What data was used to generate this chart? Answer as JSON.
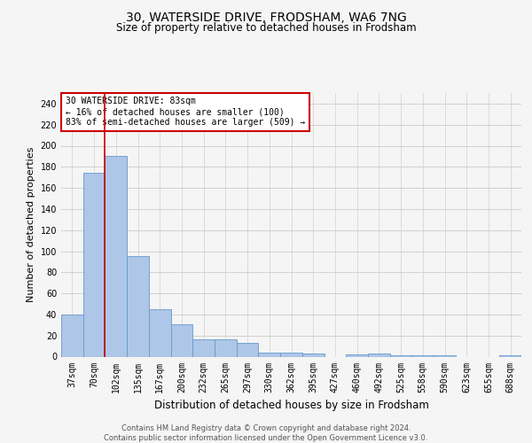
{
  "title1": "30, WATERSIDE DRIVE, FRODSHAM, WA6 7NG",
  "title2": "Size of property relative to detached houses in Frodsham",
  "xlabel": "Distribution of detached houses by size in Frodsham",
  "ylabel": "Number of detached properties",
  "categories": [
    "37sqm",
    "70sqm",
    "102sqm",
    "135sqm",
    "167sqm",
    "200sqm",
    "232sqm",
    "265sqm",
    "297sqm",
    "330sqm",
    "362sqm",
    "395sqm",
    "427sqm",
    "460sqm",
    "492sqm",
    "525sqm",
    "558sqm",
    "590sqm",
    "623sqm",
    "655sqm",
    "688sqm"
  ],
  "values": [
    40,
    174,
    190,
    95,
    45,
    31,
    16,
    16,
    13,
    4,
    4,
    3,
    0,
    2,
    3,
    1,
    1,
    1,
    0,
    0,
    1
  ],
  "bar_color": "#aec6e8",
  "bar_edge_color": "#6699cc",
  "vline_x": 1.5,
  "vline_color": "#cc0000",
  "annotation_text": "30 WATERSIDE DRIVE: 83sqm\n← 16% of detached houses are smaller (100)\n83% of semi-detached houses are larger (509) →",
  "annotation_box_color": "#ffffff",
  "annotation_box_edge": "#cc0000",
  "footer1": "Contains HM Land Registry data © Crown copyright and database right 2024.",
  "footer2": "Contains public sector information licensed under the Open Government Licence v3.0.",
  "ylim": [
    0,
    250
  ],
  "yticks": [
    0,
    20,
    40,
    60,
    80,
    100,
    120,
    140,
    160,
    180,
    200,
    220,
    240
  ],
  "bg_color": "#f5f5f5",
  "grid_color": "#d0d0d0",
  "title1_fontsize": 10,
  "title2_fontsize": 8.5,
  "ylabel_fontsize": 8,
  "xlabel_fontsize": 8.5,
  "tick_fontsize": 7,
  "footer_fontsize": 6,
  "ann_fontsize": 7
}
